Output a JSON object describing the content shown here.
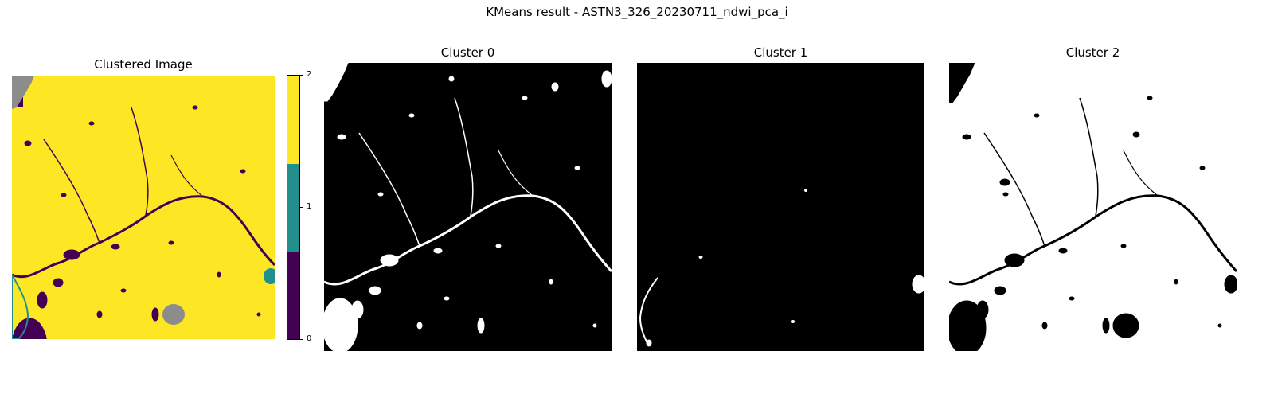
{
  "figure": {
    "suptitle": "KMeans result - ASTN3_326_20230711_ndwi_pca_i"
  },
  "chart_data": {
    "type": "heatmap",
    "title": "KMeans result - ASTN3_326_20230711_ndwi_pca_i",
    "panels": [
      {
        "title": "Clustered Image"
      },
      {
        "title": "Cluster 0"
      },
      {
        "title": "Cluster 1"
      },
      {
        "title": "Cluster 2"
      }
    ],
    "colorbar": {
      "ticks": [
        "0",
        "1",
        "2"
      ],
      "colors": [
        "#440154",
        "#21908d",
        "#fde725"
      ]
    },
    "nodata_color": "#8c8c8c",
    "mask_colors": {
      "on": "#ffffff",
      "off": "#000000"
    },
    "axes_visible": false,
    "grid": false
  }
}
